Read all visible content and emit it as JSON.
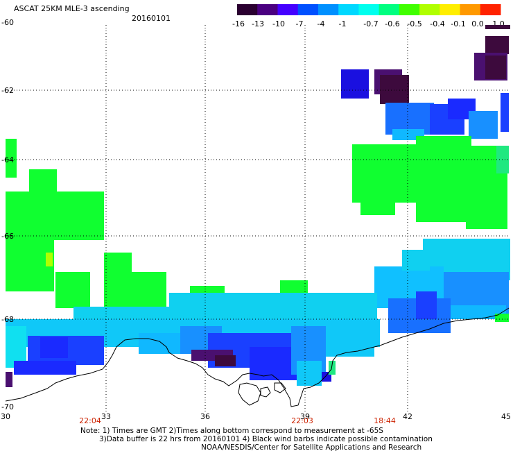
{
  "title": "ASCAT 25KM MLE-3 ascending",
  "date": "20160101",
  "colorbar": {
    "labels": [
      "-16",
      "-13",
      "-10",
      "-7",
      "-4",
      "-1",
      "-0.7",
      "-0.6",
      "-0.5",
      "-0.4",
      "-0.1",
      "0.0",
      "1.0"
    ],
    "colors": [
      "#2a0030",
      "#4a0080",
      "#4400ff",
      "#0050ff",
      "#0090ff",
      "#00d8ff",
      "#00ffee",
      "#00ff80",
      "#40ff00",
      "#b0ff00",
      "#ffee00",
      "#ff9900",
      "#ff2200"
    ]
  },
  "axes": {
    "lat_labels": [
      "-60",
      "-62",
      "-64",
      "-66",
      "-68",
      "-70"
    ],
    "lon_labels": [
      "30",
      "33",
      "36",
      "39",
      "42",
      "45"
    ]
  },
  "time_labels": [
    "22:04",
    "22:03",
    "18:44"
  ],
  "notes": [
    "Note: 1) Times are GMT 2)Times along bottom correspond to measurement at -65S",
    "3)Data buffer is 22 hrs from 20160101 4) Black wind barbs indicate possible contamination",
    "NOAA/NESDIS/Center for Satellite Applications and Research"
  ],
  "colors": {
    "deep_purple": "#3d0a3d",
    "purple": "#4a1070",
    "blue": "#1a2aff",
    "mid_blue": "#1870ff",
    "light_blue": "#10b8ff",
    "cyan": "#10e0f0",
    "green": "#10ff30",
    "green_teal": "#20e880"
  }
}
